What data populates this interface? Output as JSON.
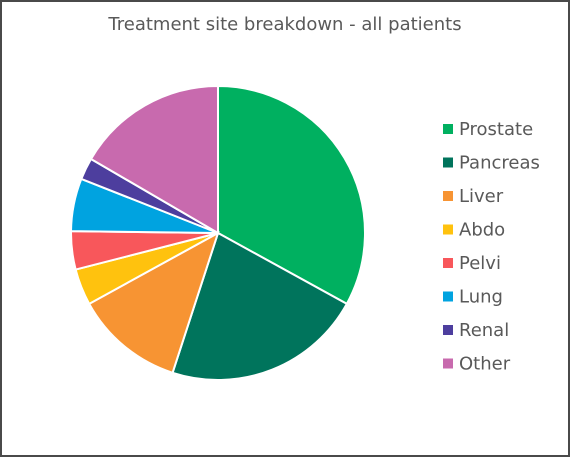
{
  "chart_data": {
    "type": "pie",
    "title": "Treatment site breakdown - all patients",
    "legend_position": "right",
    "slices": [
      {
        "label": "Prostate",
        "value": 33.0,
        "color": "#00b060"
      },
      {
        "label": "Pancreas",
        "value": 22.0,
        "color": "#00745c"
      },
      {
        "label": "Liver",
        "value": 12.0,
        "color": "#f79433"
      },
      {
        "label": "Abdo",
        "value": 4.0,
        "color": "#ffc20e"
      },
      {
        "label": "Pelvi",
        "value": 4.2,
        "color": "#f8575b"
      },
      {
        "label": "Lung",
        "value": 5.8,
        "color": "#00a3e0"
      },
      {
        "label": "Renal",
        "value": 2.4,
        "color": "#4d3e9e"
      },
      {
        "label": "Other",
        "value": 16.6,
        "color": "#c86aae"
      }
    ]
  }
}
